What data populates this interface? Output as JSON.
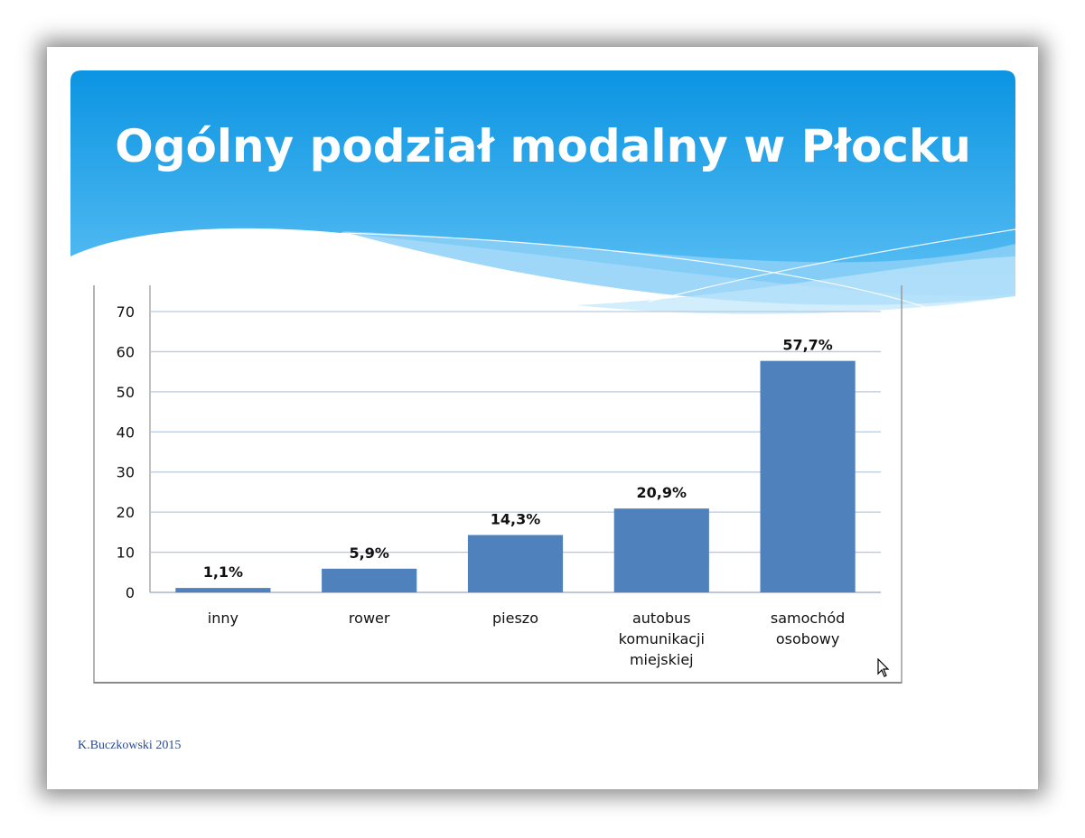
{
  "slide": {
    "title": "Ogólny podział modalny w Płocku",
    "footer": "K.Buczkowski 2015"
  },
  "colors": {
    "bar": "#4f81bd",
    "gridline": "#b9c9e3",
    "header_top": "#0b94e2",
    "header_bottom": "#5cc0f4",
    "footer_text": "#2e4a8c"
  },
  "chart_data": {
    "type": "bar",
    "title": "",
    "xlabel": "",
    "ylabel": "",
    "categories": [
      "inny",
      "rower",
      "pieszo",
      "autobus komunikacji miejskiej",
      "samochód osobowy"
    ],
    "category_lines": [
      [
        "inny"
      ],
      [
        "rower"
      ],
      [
        "pieszo"
      ],
      [
        "autobus",
        "komunikacji",
        "miejskiej"
      ],
      [
        "samochód",
        "osobowy"
      ]
    ],
    "values": [
      1.1,
      5.9,
      14.3,
      20.9,
      57.7
    ],
    "data_labels": [
      "1,1%",
      "5,9%",
      "14,3%",
      "20,9%",
      "57,7%"
    ],
    "ylim": [
      0,
      70
    ],
    "yticks": [
      0,
      10,
      20,
      30,
      40,
      50,
      60,
      70
    ],
    "grid": true,
    "legend": "none"
  }
}
